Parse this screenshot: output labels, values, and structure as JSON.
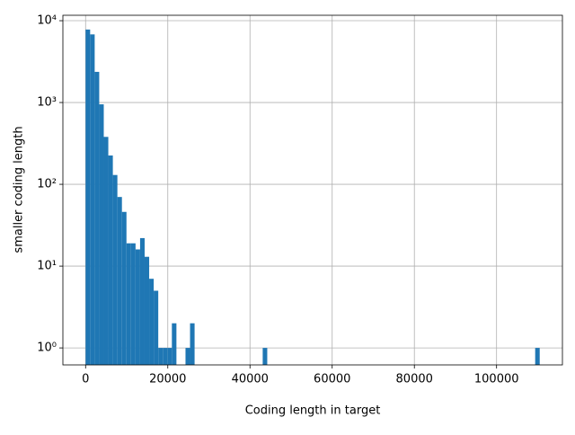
{
  "chart_data": {
    "type": "histogram",
    "xlabel": "Coding length in target",
    "ylabel": "smaller coding length",
    "bins": [
      0,
      1105,
      2210,
      3315,
      4420,
      5525,
      6630,
      7735,
      8840,
      9945,
      11050,
      12155,
      13260,
      14365,
      15470,
      16575,
      17680,
      18785,
      19890,
      20995,
      22100,
      23205,
      24310,
      25415,
      26520,
      27625,
      28730,
      29835,
      30940,
      32045,
      33150,
      34255,
      35360,
      36465,
      37570,
      38675,
      39780,
      40885,
      41990,
      43095,
      44200,
      45305,
      46410,
      47515,
      48620,
      49725,
      50830,
      51935,
      53040,
      54145,
      55250,
      56355,
      57460,
      58565,
      59670,
      60775,
      61880,
      62985,
      64090,
      65195,
      66300,
      67405,
      68510,
      69615,
      70720,
      71825,
      72930,
      74035,
      75140,
      76245,
      77350,
      78455,
      79560,
      80665,
      81770,
      82875,
      83980,
      85085,
      86190,
      87295,
      88400,
      89505,
      90610,
      91715,
      92820,
      93925,
      95030,
      96135,
      97240,
      98345,
      99450,
      100555,
      101660,
      102765,
      103870,
      104975,
      106080,
      107185,
      108290,
      109395,
      110500
    ],
    "counts": [
      7800,
      6800,
      2370,
      950,
      380,
      225,
      130,
      70,
      46,
      19,
      19,
      16,
      22,
      13,
      7,
      5,
      1,
      1,
      1,
      2,
      0,
      0,
      1,
      2,
      0,
      0,
      0,
      0,
      0,
      0,
      0,
      0,
      0,
      0,
      0,
      0,
      0,
      0,
      0,
      1,
      0,
      0,
      0,
      0,
      0,
      0,
      0,
      0,
      0,
      0,
      0,
      0,
      0,
      0,
      0,
      0,
      0,
      0,
      0,
      0,
      0,
      0,
      0,
      0,
      0,
      0,
      0,
      0,
      0,
      0,
      0,
      0,
      0,
      0,
      0,
      0,
      0,
      0,
      0,
      0,
      0,
      0,
      0,
      0,
      0,
      0,
      0,
      0,
      0,
      0,
      0,
      0,
      0,
      0,
      0,
      0,
      0,
      0,
      0,
      1
    ],
    "color": "#1f77b4",
    "xlim": [
      -5525,
      116025
    ],
    "xticks": [
      0,
      20000,
      40000,
      60000,
      80000,
      100000
    ],
    "ylim": [
      0.62,
      11650
    ],
    "ylog": true,
    "yticks": [
      {
        "value": 1,
        "label": "10⁰"
      },
      {
        "value": 10,
        "label": "10¹"
      },
      {
        "value": 100,
        "label": "10²"
      },
      {
        "value": 1000,
        "label": "10³"
      },
      {
        "value": 10000,
        "label": "10⁴"
      }
    ],
    "grid": true
  }
}
